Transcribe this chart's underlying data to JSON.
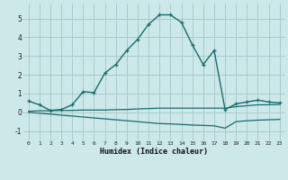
{
  "xlabel": "Humidex (Indice chaleur)",
  "bg_color": "#cce8e8",
  "grid_color": "#a8cccc",
  "line_color": "#1a6b6b",
  "x_main": [
    0,
    1,
    2,
    3,
    4,
    5,
    6,
    7,
    8,
    9,
    10,
    11,
    12,
    13,
    14,
    15,
    16,
    17,
    18,
    19,
    20,
    21,
    22,
    23
  ],
  "y_main": [
    0.6,
    0.4,
    0.1,
    0.15,
    0.4,
    1.1,
    1.05,
    2.1,
    2.55,
    3.3,
    3.9,
    4.7,
    5.2,
    5.2,
    4.8,
    3.6,
    2.55,
    3.3,
    0.15,
    0.45,
    0.55,
    0.65,
    0.55,
    0.5
  ],
  "x_line2": [
    0,
    1,
    2,
    3,
    4,
    5,
    6,
    7,
    8,
    9,
    10,
    11,
    12,
    13,
    14,
    15,
    16,
    17,
    18,
    19,
    20,
    21,
    22,
    23
  ],
  "y_line2": [
    0.05,
    0.08,
    0.08,
    0.1,
    0.1,
    0.12,
    0.12,
    0.12,
    0.14,
    0.15,
    0.18,
    0.2,
    0.22,
    0.22,
    0.22,
    0.22,
    0.22,
    0.22,
    0.22,
    0.3,
    0.35,
    0.4,
    0.4,
    0.42
  ],
  "x_line3": [
    0,
    1,
    2,
    3,
    4,
    5,
    6,
    7,
    8,
    9,
    10,
    11,
    12,
    13,
    14,
    15,
    16,
    17,
    18,
    19,
    20,
    21,
    22,
    23
  ],
  "y_line3": [
    0.0,
    -0.05,
    -0.1,
    -0.15,
    -0.2,
    -0.25,
    -0.3,
    -0.35,
    -0.4,
    -0.45,
    -0.5,
    -0.55,
    -0.6,
    -0.62,
    -0.65,
    -0.68,
    -0.7,
    -0.72,
    -0.85,
    -0.5,
    -0.45,
    -0.42,
    -0.4,
    -0.38
  ],
  "ylim": [
    -1.5,
    5.8
  ],
  "yticks": [
    -1,
    0,
    1,
    2,
    3,
    4,
    5
  ],
  "xlim": [
    -0.5,
    23.5
  ],
  "xticks": [
    0,
    1,
    2,
    3,
    4,
    5,
    6,
    7,
    8,
    9,
    10,
    11,
    12,
    13,
    14,
    15,
    16,
    17,
    18,
    19,
    20,
    21,
    22,
    23
  ]
}
